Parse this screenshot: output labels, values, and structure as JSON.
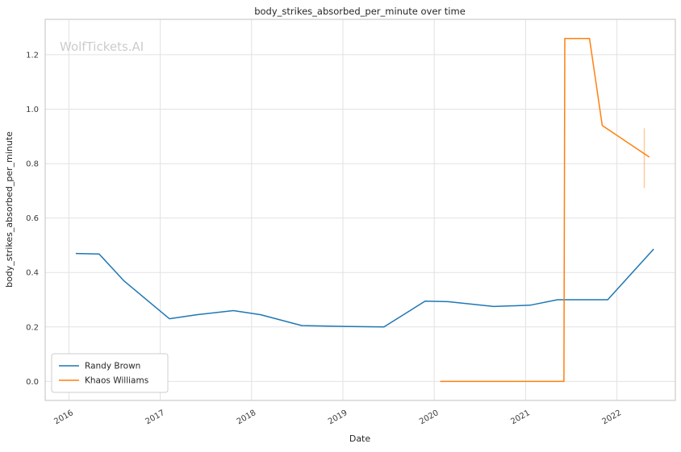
{
  "chart_data": {
    "type": "line",
    "title": "body_strikes_absorbed_per_minute over time",
    "xlabel": "Date",
    "ylabel": "body_strikes_absorbed_per_minute",
    "watermark": "WolfTickets.AI",
    "xlim": [
      2015.74,
      2022.64
    ],
    "ylim": [
      -0.07,
      1.33
    ],
    "xticks": [
      2016,
      2017,
      2018,
      2019,
      2020,
      2021,
      2022
    ],
    "yticks": [
      0.0,
      0.2,
      0.4,
      0.6,
      0.8,
      1.0,
      1.2
    ],
    "grid": true,
    "legend_position": "lower left",
    "colors": {
      "grid": "#e2e2e2",
      "spine": "#cccccc",
      "tick": "#3a3a3a",
      "text": "#262626",
      "watermark": "#cccccc",
      "background": "#ffffff"
    },
    "series": [
      {
        "name": "Randy Brown",
        "color": "#1f77b4",
        "x": [
          2016.08,
          2016.33,
          2016.6,
          2017.1,
          2017.4,
          2017.8,
          2018.1,
          2018.55,
          2019.0,
          2019.45,
          2019.9,
          2020.15,
          2020.65,
          2021.05,
          2021.35,
          2021.9,
          2022.4
        ],
        "y": [
          0.47,
          0.468,
          0.37,
          0.23,
          0.245,
          0.26,
          0.245,
          0.205,
          0.202,
          0.2,
          0.295,
          0.293,
          0.275,
          0.28,
          0.3,
          0.3,
          0.485
        ]
      },
      {
        "name": "Khaos Williams",
        "color": "#ff7f0e",
        "x": [
          2020.07,
          2021.42,
          2021.43,
          2021.7,
          2021.84,
          2022.35
        ],
        "y": [
          0.0,
          0.0,
          1.26,
          1.26,
          0.94,
          0.825
        ]
      }
    ],
    "error_bar": {
      "x": 2022.3,
      "y_range": [
        0.71,
        0.93
      ],
      "color": "#ff7f0e",
      "opacity": 0.4
    }
  }
}
